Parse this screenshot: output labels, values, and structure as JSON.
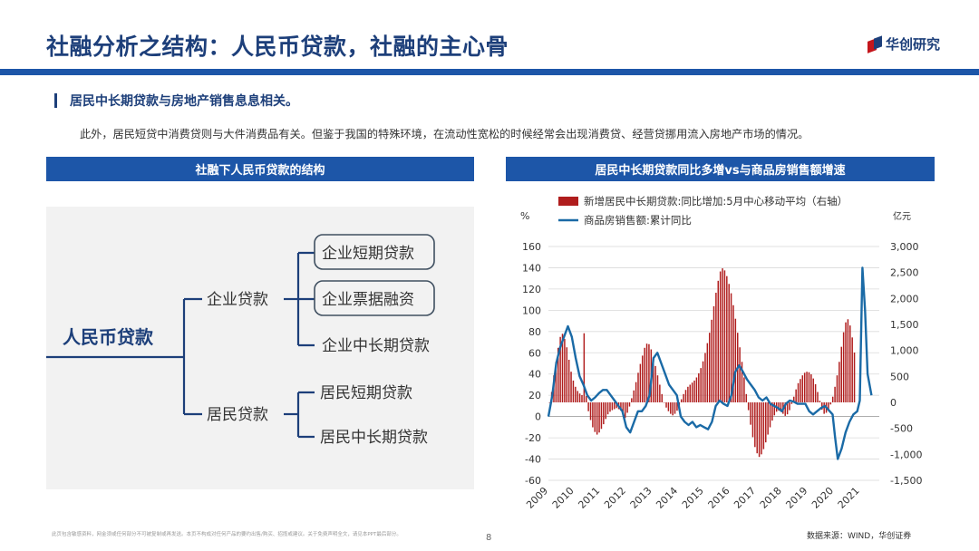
{
  "header": {
    "title": "社融分析之结构：人民币贷款，社融的主心骨",
    "logo_text": "华创研究"
  },
  "section": {
    "subheading": "居民中长期贷款与房地产销售息息相关。",
    "paragraph": "此外，居民短贷中消费贷则与大件消费品有关。但鉴于我国的特殊环境，在流动性宽松的时候经常会出现消费贷、经营贷挪用流入房地产市场的情况。"
  },
  "left_panel": {
    "banner": "社融下人民币贷款的结构",
    "root": "人民币贷款",
    "branches": [
      {
        "label": "企业贷款",
        "children": [
          "企业短期贷款",
          "企业票据融资",
          "企业中长期贷款"
        ]
      },
      {
        "label": "居民贷款",
        "children": [
          "居民短期贷款",
          "居民中长期贷款"
        ]
      }
    ]
  },
  "right_panel": {
    "banner": "居民中长期贷款同比多增vs与商品房销售额增速"
  },
  "chart_data": {
    "type": "bar+line",
    "title": "居民中长期贷款同比多增vs与商品房销售额增速",
    "left_axis_unit": "%",
    "right_axis_unit": "亿元",
    "left_ylim": [
      -60,
      160
    ],
    "right_ylim": [
      -1500,
      3000
    ],
    "left_ticks": [
      "160",
      "140",
      "120",
      "100",
      "80",
      "60",
      "40",
      "20",
      "0",
      "-20",
      "-40",
      "-60"
    ],
    "right_ticks": [
      "3,000",
      "2,500",
      "2,000",
      "1,500",
      "1,000",
      "500",
      "0",
      "-500",
      "-1,000",
      "-1,500"
    ],
    "x_ticks": [
      "2009",
      "2010",
      "2011",
      "2012",
      "2013",
      "2014",
      "2015",
      "2016",
      "2017",
      "2018",
      "2019",
      "2020",
      "2021"
    ],
    "bar_color": "#b01d1d",
    "line_color": "#1a6aa6",
    "series": [
      {
        "name": "新增居民中长期贷款:同比增加:5月中心移动平均（右轴）",
        "axis": "right",
        "kind": "bar",
        "start": "2009-01",
        "values": [
          0,
          200,
          520,
          780,
          1050,
          1260,
          1320,
          1220,
          1060,
          820,
          590,
          420,
          300,
          220,
          170,
          140,
          1330,
          120,
          -170,
          -340,
          -480,
          -570,
          -620,
          -580,
          -510,
          -420,
          -320,
          -230,
          -180,
          -150,
          -130,
          -110,
          -130,
          -160,
          -230,
          -300,
          -200,
          -80,
          80,
          230,
          390,
          570,
          740,
          900,
          1050,
          1130,
          1120,
          1020,
          870,
          700,
          520,
          340,
          160,
          0,
          -100,
          -170,
          -220,
          -250,
          -220,
          -160,
          -60,
          60,
          160,
          240,
          300,
          340,
          380,
          420,
          480,
          560,
          660,
          790,
          950,
          1140,
          1340,
          1590,
          1850,
          2110,
          2340,
          2520,
          2580,
          2540,
          2430,
          2280,
          2100,
          1870,
          1610,
          1340,
          1060,
          780,
          480,
          160,
          -150,
          -430,
          -670,
          -860,
          -980,
          -1050,
          -1000,
          -900,
          -770,
          -620,
          -480,
          -350,
          -250,
          -180,
          -160,
          -180,
          -220,
          -260,
          -230,
          -150,
          -30,
          110,
          250,
          370,
          450,
          520,
          570,
          590,
          580,
          540,
          460,
          350,
          200,
          30,
          -140,
          -220,
          -200,
          -140,
          -40,
          110,
          300,
          520,
          780,
          1070,
          1350,
          1540,
          1600,
          1480,
          1250,
          960
        ]
      },
      {
        "name": "商品房销售额:累计同比",
        "axis": "left",
        "kind": "line",
        "x": [
          2009.0,
          2009.15,
          2009.3,
          2009.45,
          2009.6,
          2009.75,
          2009.9,
          2010.05,
          2010.2,
          2010.35,
          2010.5,
          2010.65,
          2010.8,
          2010.95,
          2011.1,
          2011.25,
          2011.4,
          2011.55,
          2011.7,
          2011.85,
          2012.0,
          2012.15,
          2012.3,
          2012.45,
          2012.6,
          2012.75,
          2012.9,
          2013.05,
          2013.2,
          2013.35,
          2013.5,
          2013.65,
          2013.8,
          2013.95,
          2014.1,
          2014.25,
          2014.4,
          2014.55,
          2014.7,
          2014.85,
          2015.0,
          2015.15,
          2015.3,
          2015.45,
          2015.6,
          2015.75,
          2015.9,
          2016.05,
          2016.2,
          2016.35,
          2016.5,
          2016.65,
          2016.8,
          2016.95,
          2017.1,
          2017.25,
          2017.4,
          2017.55,
          2017.7,
          2017.85,
          2018.0,
          2018.15,
          2018.3,
          2018.45,
          2018.6,
          2018.75,
          2018.9,
          2019.05,
          2019.2,
          2019.35,
          2019.5,
          2019.65,
          2019.8,
          2019.95,
          2020.05,
          2020.15,
          2020.3,
          2020.45,
          2020.6,
          2020.75,
          2020.9,
          2021.0,
          2021.1,
          2021.2,
          2021.3,
          2021.45
        ],
        "values": [
          0,
          20,
          50,
          65,
          75,
          85,
          75,
          55,
          38,
          30,
          20,
          15,
          18,
          22,
          25,
          25,
          20,
          15,
          10,
          5,
          -10,
          -15,
          -5,
          5,
          5,
          10,
          20,
          55,
          60,
          50,
          40,
          30,
          25,
          20,
          0,
          -5,
          -8,
          -5,
          -10,
          -8,
          -10,
          -12,
          -5,
          10,
          15,
          12,
          10,
          20,
          42,
          48,
          42,
          35,
          30,
          25,
          18,
          15,
          18,
          12,
          10,
          8,
          5,
          12,
          15,
          14,
          12,
          12,
          12,
          5,
          2,
          5,
          8,
          10,
          6,
          2,
          -20,
          -40,
          -30,
          -15,
          -5,
          2,
          5,
          15,
          140,
          100,
          40,
          20
        ]
      }
    ]
  },
  "footer": {
    "disclaimer": "此页包含敏感资料，网金须或任何部分不可被复制或再发送。本页不构成对任何产品的要约出售/购买、招揽或建议。关于免费声明全文，请见本PPT最后部分。",
    "page": "8",
    "source": "数据来源：WIND，华创证券"
  }
}
